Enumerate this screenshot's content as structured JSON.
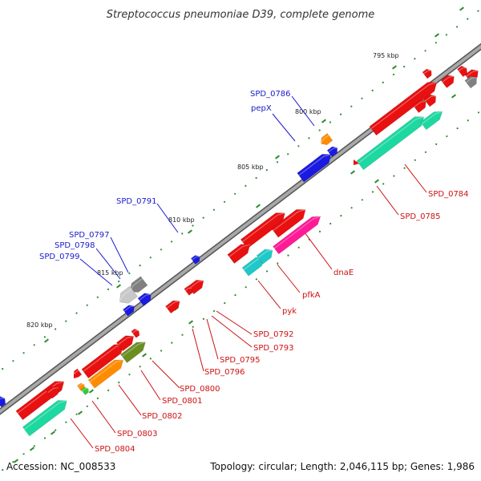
{
  "title": "Streptococcus pneumoniae D39, complete genome",
  "footer": {
    "accession": "Accession: NC_008533",
    "summary": "Topology: circular; Length: 2,046,115 bp; Genes: 1,986"
  },
  "colors": {
    "backbone": "#8a8a8a",
    "tick": "#2e8b2e",
    "forward_label": "#1a1acc",
    "reverse_label": "#cc1111",
    "callout_line_forward": "#1a1acc",
    "callout_line_reverse": "#cc1111"
  },
  "ruler": {
    "ticks": [
      {
        "label": "795 kbp"
      },
      {
        "label": "800 kbp"
      },
      {
        "label": "805 kbp"
      },
      {
        "label": "810 kbp"
      },
      {
        "label": "815 kbp"
      },
      {
        "label": "820 kbp"
      }
    ]
  },
  "features": [
    {
      "color": "#e81010",
      "icon": "arrow-block"
    },
    {
      "color": "#e81010",
      "icon": "arrow-block"
    },
    {
      "color": "#e81010",
      "icon": "arrow-block"
    },
    {
      "color": "#e81010",
      "icon": "arrow-block"
    },
    {
      "color": "#e81010",
      "icon": "arrow-block"
    },
    {
      "color": "#e81010",
      "icon": "arrow-block"
    },
    {
      "color": "#e81010",
      "icon": "arrow-block"
    },
    {
      "color": "#e81010",
      "icon": "arrow-block"
    },
    {
      "color": "#1dd8a0",
      "icon": "arrow-block"
    },
    {
      "color": "#1dd8a0",
      "icon": "arrow-block"
    },
    {
      "color": "#e81010",
      "icon": "arrow-block"
    },
    {
      "color": "#ff1a96",
      "icon": "arrow-block"
    },
    {
      "color": "#20c8c8",
      "icon": "arrow-block"
    },
    {
      "color": "#20c8c8",
      "icon": "arrow-block"
    },
    {
      "color": "#1a1ae0",
      "icon": "arrow-block"
    },
    {
      "color": "#1a1ae0",
      "icon": "arrow-block"
    },
    {
      "color": "#ff8c00",
      "icon": "arrow-block"
    },
    {
      "color": "#1a1ae0",
      "icon": "arrow-block"
    },
    {
      "color": "#808080",
      "icon": "arrow-block"
    },
    {
      "color": "#c8c8c8",
      "icon": "arrow-block"
    },
    {
      "color": "#1a1ae0",
      "icon": "arrow-block"
    },
    {
      "color": "#1a1ae0",
      "icon": "arrow-block"
    },
    {
      "color": "#e81010",
      "icon": "arrow-block"
    },
    {
      "color": "#e81010",
      "icon": "arrow-block"
    },
    {
      "color": "#e81010",
      "icon": "arrow-block"
    },
    {
      "color": "#e81010",
      "icon": "arrow-block"
    },
    {
      "color": "#e81010",
      "icon": "arrow-block"
    },
    {
      "color": "#e81010",
      "icon": "arrow-block"
    },
    {
      "color": "#e81010",
      "icon": "arrow-block"
    },
    {
      "color": "#6b8e23",
      "icon": "arrow-block"
    },
    {
      "color": "#ff8c00",
      "icon": "arrow-block"
    },
    {
      "color": "#e81010",
      "icon": "arrow-block"
    },
    {
      "color": "#e81010",
      "icon": "arrow-block"
    },
    {
      "color": "#ff8c00",
      "icon": "arrow-block"
    },
    {
      "color": "#33cc33",
      "icon": "arrow-block"
    },
    {
      "color": "#1dd8a0",
      "icon": "arrow-block"
    },
    {
      "color": "#e81010",
      "icon": "arrow-block"
    },
    {
      "color": "#1a1ae0",
      "icon": "arrow-block"
    },
    {
      "color": "#808080",
      "icon": "arrow-block"
    }
  ],
  "labels": [
    {
      "text": "SPD_0786",
      "strand": "forward"
    },
    {
      "text": "pepX",
      "strand": "forward"
    },
    {
      "text": "SPD_0791",
      "strand": "forward"
    },
    {
      "text": "SPD_0797",
      "strand": "forward"
    },
    {
      "text": "SPD_0798",
      "strand": "forward"
    },
    {
      "text": "SPD_0799",
      "strand": "forward"
    },
    {
      "text": "SPD_0784",
      "strand": "reverse"
    },
    {
      "text": "SPD_0785",
      "strand": "reverse"
    },
    {
      "text": "dnaE",
      "strand": "reverse"
    },
    {
      "text": "pfkA",
      "strand": "reverse"
    },
    {
      "text": "pyk",
      "strand": "reverse"
    },
    {
      "text": "SPD_0792",
      "strand": "reverse"
    },
    {
      "text": "SPD_0793",
      "strand": "reverse"
    },
    {
      "text": "SPD_0795",
      "strand": "reverse"
    },
    {
      "text": "SPD_0796",
      "strand": "reverse"
    },
    {
      "text": "SPD_0800",
      "strand": "reverse"
    },
    {
      "text": "SPD_0801",
      "strand": "reverse"
    },
    {
      "text": "SPD_0802",
      "strand": "reverse"
    },
    {
      "text": "SPD_0803",
      "strand": "reverse"
    },
    {
      "text": "SPD_0804",
      "strand": "reverse"
    }
  ]
}
